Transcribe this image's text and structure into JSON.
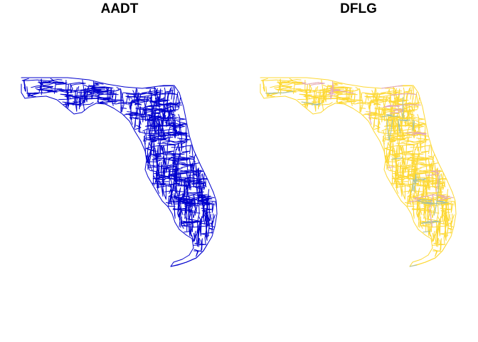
{
  "panels": [
    {
      "title": "AADT",
      "network_color": "#0000CD",
      "highlight_colors": []
    },
    {
      "title": "DFLG",
      "network_color": "#FDD835",
      "highlight_colors": [
        "#E0A3C8",
        "#A0C0B0"
      ]
    }
  ]
}
